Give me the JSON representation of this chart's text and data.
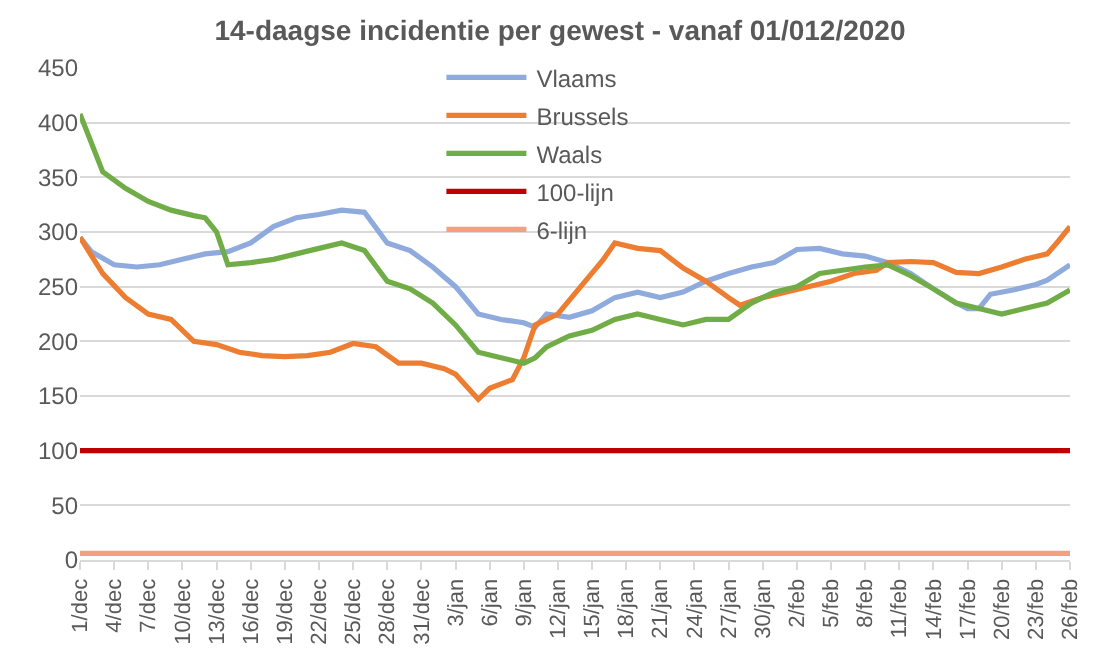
{
  "chart_data": {
    "type": "line",
    "title": "14-daagse incidentie per gewest - vanaf 01/012/2020",
    "series": [
      {
        "name": "Vlaams",
        "color": "#8faadc",
        "x": [
          "2020-12-01",
          "2020-12-02",
          "2020-12-04",
          "2020-12-06",
          "2020-12-08",
          "2020-12-10",
          "2020-12-12",
          "2020-12-14",
          "2020-12-16",
          "2020-12-18",
          "2020-12-20",
          "2020-12-22",
          "2020-12-24",
          "2020-12-26",
          "2020-12-28",
          "2020-12-30",
          "2021-01-01",
          "2021-01-03",
          "2021-01-05",
          "2021-01-07",
          "2021-01-09",
          "2021-01-10",
          "2021-01-11",
          "2021-01-13",
          "2021-01-15",
          "2021-01-17",
          "2021-01-19",
          "2021-01-21",
          "2021-01-23",
          "2021-01-25",
          "2021-01-27",
          "2021-01-29",
          "2021-01-31",
          "2021-02-02",
          "2021-02-04",
          "2021-02-06",
          "2021-02-08",
          "2021-02-10",
          "2021-02-12",
          "2021-02-14",
          "2021-02-16",
          "2021-02-17",
          "2021-02-18",
          "2021-02-19",
          "2021-02-21",
          "2021-02-23",
          "2021-02-24",
          "2021-02-26"
        ],
        "values": [
          295,
          282,
          270,
          268,
          270,
          275,
          280,
          282,
          290,
          305,
          313,
          316,
          320,
          318,
          290,
          283,
          268,
          250,
          225,
          220,
          217,
          213,
          225,
          222,
          228,
          240,
          245,
          240,
          245,
          255,
          262,
          268,
          272,
          284,
          285,
          280,
          278,
          272,
          262,
          248,
          235,
          230,
          230,
          243,
          247,
          252,
          256,
          270
        ]
      },
      {
        "name": "Brussels",
        "color": "#ed7d31",
        "x": [
          "2020-12-01",
          "2020-12-03",
          "2020-12-05",
          "2020-12-07",
          "2020-12-09",
          "2020-12-11",
          "2020-12-13",
          "2020-12-15",
          "2020-12-17",
          "2020-12-19",
          "2020-12-21",
          "2020-12-23",
          "2020-12-25",
          "2020-12-27",
          "2020-12-29",
          "2020-12-31",
          "2021-01-02",
          "2021-01-03",
          "2021-01-05",
          "2021-01-06",
          "2021-01-08",
          "2021-01-09",
          "2021-01-10",
          "2021-01-12",
          "2021-01-14",
          "2021-01-16",
          "2021-01-17",
          "2021-01-19",
          "2021-01-21",
          "2021-01-23",
          "2021-01-25",
          "2021-01-27",
          "2021-01-28",
          "2021-01-30",
          "2021-02-01",
          "2021-02-03",
          "2021-02-05",
          "2021-02-07",
          "2021-02-09",
          "2021-02-10",
          "2021-02-12",
          "2021-02-14",
          "2021-02-16",
          "2021-02-18",
          "2021-02-20",
          "2021-02-22",
          "2021-02-24",
          "2021-02-25",
          "2021-02-26"
        ],
        "values": [
          295,
          262,
          240,
          225,
          220,
          200,
          197,
          190,
          187,
          186,
          187,
          190,
          198,
          195,
          180,
          180,
          175,
          170,
          147,
          157,
          165,
          185,
          215,
          225,
          250,
          275,
          290,
          285,
          283,
          267,
          255,
          240,
          233,
          240,
          245,
          250,
          255,
          262,
          265,
          272,
          273,
          272,
          263,
          262,
          268,
          275,
          280,
          292,
          305
        ]
      },
      {
        "name": "Waals",
        "color": "#70ad47",
        "x": [
          "2020-12-01",
          "2020-12-03",
          "2020-12-05",
          "2020-12-07",
          "2020-12-09",
          "2020-12-11",
          "2020-12-12",
          "2020-12-13",
          "2020-12-14",
          "2020-12-16",
          "2020-12-18",
          "2020-12-20",
          "2020-12-22",
          "2020-12-24",
          "2020-12-26",
          "2020-12-28",
          "2020-12-30",
          "2021-01-01",
          "2021-01-03",
          "2021-01-05",
          "2021-01-07",
          "2021-01-09",
          "2021-01-10",
          "2021-01-11",
          "2021-01-13",
          "2021-01-15",
          "2021-01-17",
          "2021-01-19",
          "2021-01-21",
          "2021-01-23",
          "2021-01-25",
          "2021-01-27",
          "2021-01-29",
          "2021-01-31",
          "2021-02-02",
          "2021-02-04",
          "2021-02-06",
          "2021-02-08",
          "2021-02-10",
          "2021-02-12",
          "2021-02-14",
          "2021-02-16",
          "2021-02-18",
          "2021-02-20",
          "2021-02-22",
          "2021-02-24",
          "2021-02-26"
        ],
        "values": [
          408,
          355,
          340,
          328,
          320,
          315,
          313,
          300,
          270,
          272,
          275,
          280,
          285,
          290,
          283,
          255,
          248,
          235,
          215,
          190,
          185,
          180,
          185,
          195,
          205,
          210,
          220,
          225,
          220,
          215,
          220,
          220,
          235,
          245,
          250,
          262,
          265,
          268,
          270,
          260,
          248,
          235,
          230,
          225,
          230,
          235,
          247
        ]
      },
      {
        "name": "100-lijn",
        "color": "#c00000",
        "x": [
          "2020-12-01",
          "2021-02-26"
        ],
        "values": [
          100,
          100
        ]
      },
      {
        "name": "6-lijn",
        "color": "#f4a080",
        "x": [
          "2020-12-01",
          "2021-02-26"
        ],
        "values": [
          6,
          6
        ]
      }
    ],
    "xlim": [
      "2020-12-01",
      "2021-02-26"
    ],
    "xticks": [
      {
        "value": "2020-12-01",
        "label": "1/dec"
      },
      {
        "value": "2020-12-04",
        "label": "4/dec"
      },
      {
        "value": "2020-12-07",
        "label": "7/dec"
      },
      {
        "value": "2020-12-10",
        "label": "10/dec"
      },
      {
        "value": "2020-12-13",
        "label": "13/dec"
      },
      {
        "value": "2020-12-16",
        "label": "16/dec"
      },
      {
        "value": "2020-12-19",
        "label": "19/dec"
      },
      {
        "value": "2020-12-22",
        "label": "22/dec"
      },
      {
        "value": "2020-12-25",
        "label": "25/dec"
      },
      {
        "value": "2020-12-28",
        "label": "28/dec"
      },
      {
        "value": "2020-12-31",
        "label": "31/dec"
      },
      {
        "value": "2021-01-03",
        "label": "3/jan"
      },
      {
        "value": "2021-01-06",
        "label": "6/jan"
      },
      {
        "value": "2021-01-09",
        "label": "9/jan"
      },
      {
        "value": "2021-01-12",
        "label": "12/jan"
      },
      {
        "value": "2021-01-15",
        "label": "15/jan"
      },
      {
        "value": "2021-01-18",
        "label": "18/jan"
      },
      {
        "value": "2021-01-21",
        "label": "21/jan"
      },
      {
        "value": "2021-01-24",
        "label": "24/jan"
      },
      {
        "value": "2021-01-27",
        "label": "27/jan"
      },
      {
        "value": "2021-01-30",
        "label": "30/jan"
      },
      {
        "value": "2021-02-02",
        "label": "2/feb"
      },
      {
        "value": "2021-02-05",
        "label": "5/feb"
      },
      {
        "value": "2021-02-08",
        "label": "8/feb"
      },
      {
        "value": "2021-02-11",
        "label": "11/feb"
      },
      {
        "value": "2021-02-14",
        "label": "14/feb"
      },
      {
        "value": "2021-02-17",
        "label": "17/feb"
      },
      {
        "value": "2021-02-20",
        "label": "20/feb"
      },
      {
        "value": "2021-02-23",
        "label": "23/feb"
      },
      {
        "value": "2021-02-26",
        "label": "26/feb"
      }
    ],
    "ylim": [
      0,
      450
    ],
    "yticks": [
      0,
      50,
      100,
      150,
      200,
      250,
      300,
      350,
      400,
      450
    ],
    "grid": "y",
    "legend": "top",
    "marker": "none",
    "line_style": "solid"
  }
}
